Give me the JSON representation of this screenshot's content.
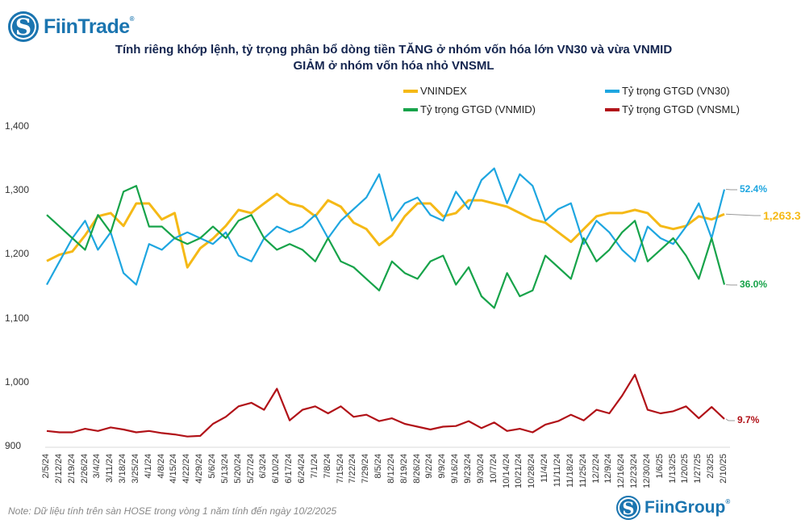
{
  "header": {
    "logo_text": "FiinTrade",
    "logo_mark": "S",
    "registered": "®"
  },
  "chart_data": {
    "type": "line",
    "title": [
      "Tính riêng khớp lệnh, tỷ trọng phân bổ dòng tiền TĂNG ở nhóm vốn hóa lớn VN30 và vừa VNMID",
      "GIẢM ở nhóm vốn hóa nhỏ VNSML"
    ],
    "ylim": [
      900,
      1400
    ],
    "yticks": [
      "1,400",
      "1,300",
      "1,200",
      "1,100",
      "1,000",
      "900"
    ],
    "ytick_values": [
      1400,
      1300,
      1200,
      1100,
      1000,
      900
    ],
    "grid": false,
    "legend_position": "top-right",
    "x": [
      "2/5/24",
      "2/12/24",
      "2/19/24",
      "2/26/24",
      "3/4/24",
      "3/11/24",
      "3/18/24",
      "3/25/24",
      "4/1/24",
      "4/8/24",
      "4/15/24",
      "4/22/24",
      "4/29/24",
      "5/6/24",
      "5/13/24",
      "5/20/24",
      "5/27/24",
      "6/3/24",
      "6/10/24",
      "6/17/24",
      "6/24/24",
      "7/1/24",
      "7/8/24",
      "7/15/24",
      "7/22/24",
      "7/29/24",
      "8/5/24",
      "8/12/24",
      "8/19/24",
      "8/26/24",
      "9/2/24",
      "9/9/24",
      "9/16/24",
      "9/23/24",
      "9/30/24",
      "10/7/24",
      "10/14/24",
      "10/21/24",
      "10/28/24",
      "11/4/24",
      "11/11/24",
      "11/18/24",
      "11/25/24",
      "12/2/24",
      "12/9/24",
      "12/16/24",
      "12/23/24",
      "12/30/24",
      "1/6/25",
      "1/13/25",
      "1/20/25",
      "1/27/25",
      "2/3/25",
      "2/10/25"
    ],
    "series": [
      {
        "name": "VNINDEX",
        "color": "#f5b916",
        "axis": "left",
        "end_label": "1,263.3",
        "values": [
          1190,
          1200,
          1205,
          1230,
          1260,
          1265,
          1245,
          1280,
          1280,
          1255,
          1265,
          1180,
          1210,
          1225,
          1245,
          1270,
          1265,
          1280,
          1295,
          1280,
          1275,
          1260,
          1285,
          1275,
          1250,
          1240,
          1215,
          1230,
          1260,
          1280,
          1280,
          1260,
          1265,
          1285,
          1285,
          1280,
          1275,
          1265,
          1255,
          1250,
          1235,
          1220,
          1240,
          1260,
          1265,
          1265,
          1270,
          1265,
          1245,
          1240,
          1245,
          1260,
          1255,
          1263.3
        ]
      },
      {
        "name": "Tỷ trọng GTGD (VN30)",
        "color": "#1ea6e0",
        "axis": "percent",
        "end_label": "52.4%",
        "values": [
          36,
          40,
          44,
          47,
          42,
          45,
          38,
          36,
          43,
          42,
          44,
          45,
          44,
          43,
          45,
          41,
          40,
          44,
          46,
          45,
          46,
          48,
          44,
          47,
          49,
          51,
          55,
          47,
          50,
          51,
          48,
          47,
          52,
          49,
          54,
          56,
          50,
          55,
          53,
          47,
          49,
          50,
          43,
          47,
          45,
          42,
          40,
          46,
          44,
          43,
          46,
          50,
          44,
          52.4
        ]
      },
      {
        "name": "Tỷ trọng GTGD (VNMID)",
        "color": "#17a34a",
        "axis": "percent",
        "end_label": "36.0%",
        "values": [
          48,
          46,
          44,
          42,
          48,
          45,
          52,
          53,
          46,
          46,
          44,
          43,
          44,
          46,
          44,
          47,
          48,
          44,
          42,
          43,
          42,
          40,
          44,
          40,
          39,
          37,
          35,
          40,
          38,
          37,
          40,
          41,
          36,
          39,
          34,
          32,
          38,
          34,
          35,
          41,
          39,
          37,
          44,
          40,
          42,
          45,
          47,
          40,
          42,
          44,
          41,
          37,
          44,
          36.0
        ]
      },
      {
        "name": "Tỷ trọng GTGD (VNSML)",
        "color": "#b11218",
        "axis": "percent_small",
        "end_label": "9.7%",
        "values": [
          8,
          7.8,
          7.8,
          8.3,
          8,
          8.5,
          8.2,
          7.8,
          8,
          7.7,
          7.5,
          7.2,
          7.3,
          9,
          10,
          11.5,
          12,
          11,
          14,
          9.5,
          11,
          11.5,
          10.5,
          11.5,
          10,
          10.3,
          9.4,
          9.8,
          9,
          8.6,
          8.2,
          8.6,
          8.7,
          9.4,
          8.4,
          9.2,
          8,
          8.3,
          7.8,
          8.9,
          9.4,
          10.3,
          9.5,
          11,
          10.5,
          13,
          16,
          11,
          10.5,
          10.8,
          11.5,
          9.8,
          11.4,
          9.7
        ]
      }
    ]
  },
  "footer": {
    "note": "Note: Dữ liệu tính trên sàn HOSE trong vòng 1 năm tính đến ngày 10/2/2025",
    "brand": "FiinGroup",
    "brand_mark": "S",
    "registered": "®"
  }
}
